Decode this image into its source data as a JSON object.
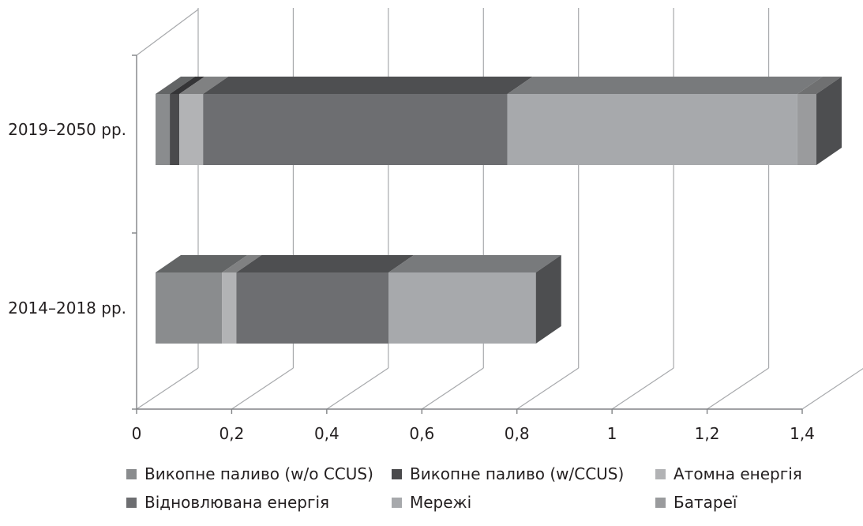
{
  "chart_data": {
    "type": "bar",
    "orientation": "horizontal",
    "stacked": true,
    "three_d": true,
    "categories": [
      "2019–2050 рр.",
      "2014–2018 рр."
    ],
    "series": [
      {
        "name": "Викопне паливо (w/o CCUS)",
        "values": [
          0.03,
          0.14
        ],
        "color": "#8a8c8e"
      },
      {
        "name": "Викопне паливо (w/CCUS)",
        "values": [
          0.02,
          0.0
        ],
        "color": "#4a4a4c"
      },
      {
        "name": "Атомна енергія",
        "values": [
          0.05,
          0.03
        ],
        "color": "#b2b3b5"
      },
      {
        "name": "Відновлювана енергія",
        "values": [
          0.64,
          0.32
        ],
        "color": "#6d6e71"
      },
      {
        "name": "Мережі",
        "values": [
          0.61,
          0.31
        ],
        "color": "#a7a9ac"
      },
      {
        "name": "Батареї",
        "values": [
          0.04,
          0.0
        ],
        "color": "#9a9b9d"
      }
    ],
    "xlim": [
      0,
      1.4
    ],
    "xticks": [
      0,
      0.2,
      0.4,
      0.6,
      0.8,
      1,
      1.2,
      1.4
    ],
    "xtick_labels": [
      "0",
      "0,2",
      "0,4",
      "0,6",
      "0,8",
      "1",
      "1,2",
      "1,4"
    ],
    "grid": true,
    "legend_position": "bottom"
  }
}
